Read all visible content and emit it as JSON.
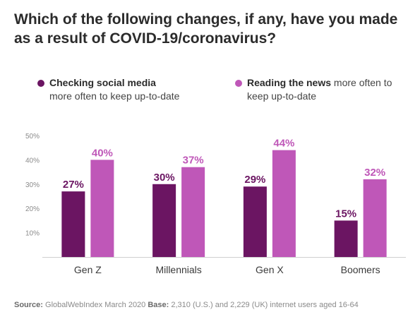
{
  "title": "Which of the following changes, if any, have you made as a result of COVID-19/coronavirus?",
  "legend": [
    {
      "bold": "Checking social media",
      "rest": "more often to keep up-to-date",
      "color": "#6b1562"
    },
    {
      "bold": "Reading the news",
      "rest": " more often to keep up-to-date",
      "color": "#bf57b8"
    }
  ],
  "footer": {
    "source_label": "Source:",
    "source_text": " GlobalWebIndex March 2020 ",
    "base_label": "Base:",
    "base_text": " 2,310 (U.S.) and 2,229 (UK) internet users aged 16-64"
  },
  "chart_data": {
    "type": "bar",
    "categories": [
      "Gen Z",
      "Millennials",
      "Gen X",
      "Boomers"
    ],
    "series": [
      {
        "name": "Checking social media more often to keep up-to-date",
        "values": [
          27,
          30,
          29,
          15
        ],
        "color": "#6b1562"
      },
      {
        "name": "Reading the news more often to keep up-to-date",
        "values": [
          40,
          37,
          44,
          32
        ],
        "color": "#bf57b8"
      }
    ],
    "y_ticks": [
      "10%",
      "20%",
      "30%",
      "40%",
      "50%"
    ],
    "y_tick_values": [
      10,
      20,
      30,
      40,
      50
    ],
    "ylim": [
      0,
      50
    ],
    "data_labels": [
      [
        "27%",
        "30%",
        "29%",
        "15%"
      ],
      [
        "40%",
        "37%",
        "44%",
        "32%"
      ]
    ],
    "grid": false,
    "legend_position": "top"
  }
}
